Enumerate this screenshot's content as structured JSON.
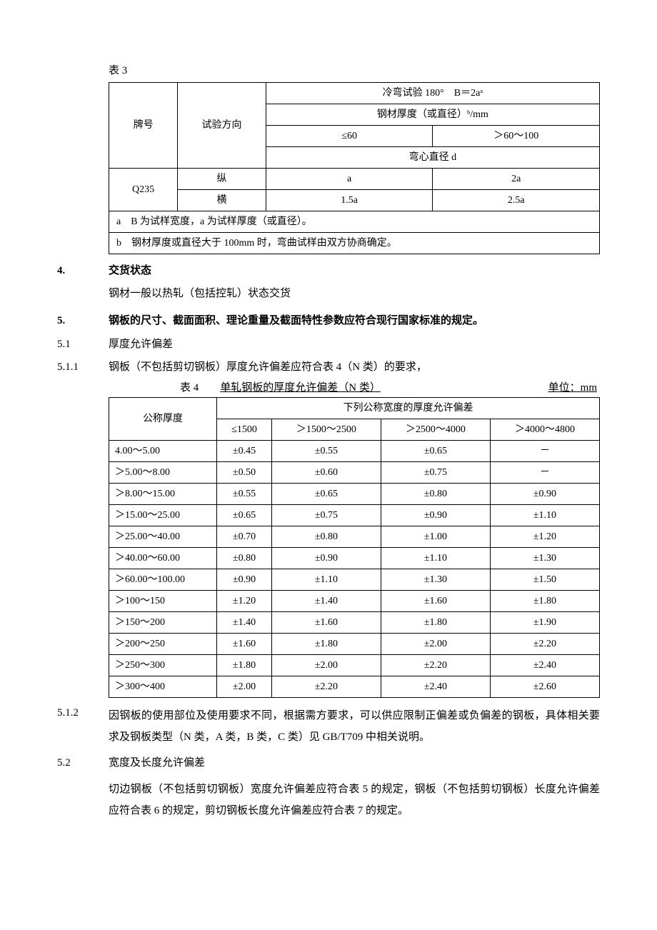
{
  "table3": {
    "label": "表 3",
    "h_grade": "牌号",
    "h_dir": "试验方向",
    "h_test": "冷弯试验 180°　B＝2aᵃ",
    "h_thickness": "钢材厚度（或直径）ᵇ/mm",
    "col_le60": "≤60",
    "col_60_100": "＞60～100",
    "h_bendcore": "弯心直径 d",
    "grade": "Q235",
    "dir_long": "纵",
    "dir_trans": "横",
    "v_long_1": "a",
    "v_long_2": "2a",
    "v_trans_1": "1.5a",
    "v_trans_2": "2.5a",
    "note_a": "a　B 为试样宽度，a 为试样厚度（或直径）。",
    "note_b": "b　钢材厚度或直径大于 100mm 时，弯曲试样由双方协商确定。"
  },
  "s4": {
    "num": "4.",
    "title": "交货状态",
    "body": "钢材一般以热轧（包括控轧）状态交货"
  },
  "s5": {
    "num": "5.",
    "title": "钢板的尺寸、截面面积、理论重量及截面特性参数应符合现行国家标准的规定。"
  },
  "s5_1": {
    "num": "5.1",
    "title": "厚度允许偏差"
  },
  "s5_1_1": {
    "num": "5.1.1",
    "text": "钢板（不包括剪切钢板）厚度允许偏差应符合表 4（N 类）的要求，"
  },
  "table4": {
    "caption_left": "表 4",
    "caption_mid": "单轧钢板的厚度允许偏差（N 类）",
    "caption_right": "单位：mm",
    "h_nominal": "公称厚度",
    "h_span": "下列公称宽度的厚度允许偏差",
    "cols": [
      "≤1500",
      "＞1500～2500",
      "＞2500～4000",
      "＞4000～4800"
    ],
    "rows": [
      [
        "4.00～5.00",
        "±0.45",
        "±0.55",
        "±0.65",
        "－"
      ],
      [
        "＞5.00～8.00",
        "±0.50",
        "±0.60",
        "±0.75",
        "－"
      ],
      [
        "＞8.00～15.00",
        "±0.55",
        "±0.65",
        "±0.80",
        "±0.90"
      ],
      [
        "＞15.00～25.00",
        "±0.65",
        "±0.75",
        "±0.90",
        "±1.10"
      ],
      [
        "＞25.00～40.00",
        "±0.70",
        "±0.80",
        "±1.00",
        "±1.20"
      ],
      [
        "＞40.00～60.00",
        "±0.80",
        "±0.90",
        "±1.10",
        "±1.30"
      ],
      [
        "＞60.00～100.00",
        "±0.90",
        "±1.10",
        "±1.30",
        "±1.50"
      ],
      [
        "＞100～150",
        "±1.20",
        "±1.40",
        "±1.60",
        "±1.80"
      ],
      [
        "＞150～200",
        "±1.40",
        "±1.60",
        "±1.80",
        "±1.90"
      ],
      [
        "＞200～250",
        "±1.60",
        "±1.80",
        "±2.00",
        "±2.20"
      ],
      [
        "＞250～300",
        "±1.80",
        "±2.00",
        "±2.20",
        "±2.40"
      ],
      [
        "＞300～400",
        "±2.00",
        "±2.20",
        "±2.40",
        "±2.60"
      ]
    ]
  },
  "s5_1_2": {
    "num": "5.1.2",
    "text": "因钢板的使用部位及使用要求不同，根据需方要求，可以供应限制正偏差或负偏差的钢板，具体相关要求及钢板类型（N 类，A 类，B 类，C 类）见 GB/T709 中相关说明。"
  },
  "s5_2": {
    "num": "5.2",
    "title": "宽度及长度允许偏差",
    "body": "切边钢板（不包括剪切钢板）宽度允许偏差应符合表 5 的规定，钢板（不包括剪切钢板）长度允许偏差应符合表 6 的规定，剪切钢板长度允许偏差应符合表 7 的规定。"
  }
}
